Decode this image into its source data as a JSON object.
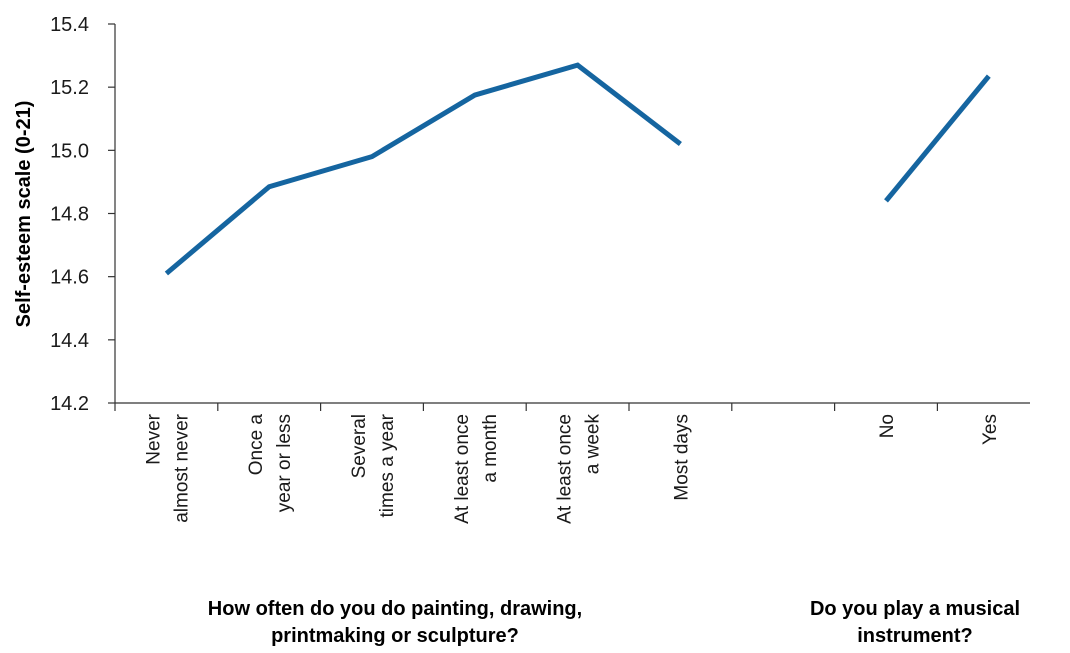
{
  "chart_data": {
    "type": "line",
    "ylabel": "Self-esteem scale (0-21)",
    "ylim": [
      14.2,
      15.4
    ],
    "yticks": [
      "14.2",
      "14.4",
      "14.6",
      "14.8",
      "15.0",
      "15.2",
      "15.4"
    ],
    "ytick_values": [
      14.2,
      14.4,
      14.6,
      14.8,
      15.0,
      15.2,
      15.4
    ],
    "grid": false,
    "line_color": "#1565A0",
    "groups": [
      {
        "title_lines": [
          "How often do you do painting, drawing,",
          "printmaking or sculpture?"
        ],
        "categories": [
          [
            "Never",
            "almost never"
          ],
          [
            "Once a",
            "year or less"
          ],
          [
            "Several",
            "times a year"
          ],
          [
            "At least once",
            "a month"
          ],
          [
            "At least once",
            "a week"
          ],
          [
            "Most days"
          ]
        ],
        "values": [
          14.61,
          14.885,
          14.98,
          15.175,
          15.27,
          15.02
        ]
      },
      {
        "title_lines": [
          "Do you play a musical",
          "instrument?"
        ],
        "categories": [
          [
            "No"
          ],
          [
            "Yes"
          ]
        ],
        "values": [
          14.84,
          15.235
        ]
      }
    ]
  }
}
